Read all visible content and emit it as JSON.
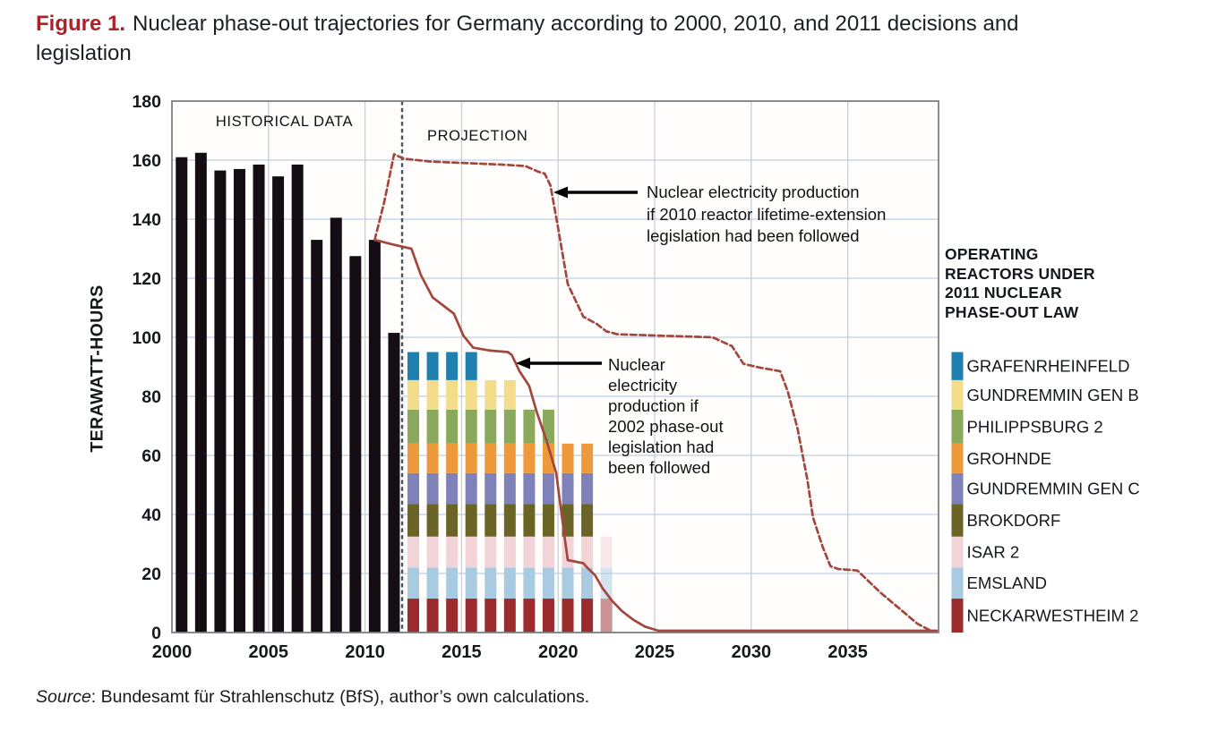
{
  "figure": {
    "label": "Figure 1.",
    "title": "Nuclear phase-out trajectories for Germany according to 2000, 2010, and 2011 decisions and legislation",
    "source_prefix": "Source",
    "source_text": ":  Bundesamt für Strahlenschutz (BfS), author’s own calculations."
  },
  "chart_data": {
    "type": "bar",
    "title": "Nuclear phase-out trajectories for Germany",
    "ylabel": "TERAWATT-HOURS",
    "xlabel": "",
    "ylim": [
      0,
      180
    ],
    "xlim": [
      2000,
      2039.7
    ],
    "yticks": [
      0,
      20,
      40,
      60,
      80,
      100,
      120,
      140,
      160,
      180
    ],
    "xticks": [
      2000,
      2005,
      2010,
      2015,
      2020,
      2025,
      2030,
      2035
    ],
    "grid": true,
    "separator_year": 2011.92,
    "region_labels": {
      "historical": "HISTORICAL DATA",
      "projection": "PROJECTION"
    },
    "historical": {
      "name": "Historical nuclear electricity production",
      "color": "#140e14",
      "years": [
        2000,
        2001,
        2002,
        2003,
        2004,
        2005,
        2006,
        2007,
        2008,
        2009,
        2010,
        2011
      ],
      "values": [
        161,
        162.5,
        156.5,
        157,
        158.5,
        154.5,
        158.5,
        133,
        140.5,
        127.5,
        133,
        101.5
      ]
    },
    "reactors_bottom_to_top": [
      {
        "name": "NECKARWESTHEIM 2",
        "value": 11.5,
        "color": "#9b2b2d"
      },
      {
        "name": "EMSLAND",
        "value": 10.5,
        "color": "#a9cbe2"
      },
      {
        "name": "ISAR 2",
        "value": 10.5,
        "color": "#f2d3d8"
      },
      {
        "name": "BROKDORF",
        "value": 11.0,
        "color": "#6a6426"
      },
      {
        "name": "GUNDREMMIN GEN C",
        "value": 10.5,
        "color": "#7f82b8"
      },
      {
        "name": "GROHNDE",
        "value": 10.0,
        "color": "#ee9a3b"
      },
      {
        "name": "PHILIPPSBURG 2",
        "value": 11.5,
        "color": "#8ba95c"
      },
      {
        "name": "GUNDREMMIN GEN B",
        "value": 10.0,
        "color": "#f4dd8a"
      },
      {
        "name": "GRAFENRHEINFELD",
        "value": 9.5,
        "color": "#1f7fae"
      }
    ],
    "projection_bars": [
      {
        "year": 2012,
        "reactor_count": 9,
        "faded": false
      },
      {
        "year": 2013,
        "reactor_count": 9,
        "faded": false
      },
      {
        "year": 2014,
        "reactor_count": 9,
        "faded": false
      },
      {
        "year": 2015,
        "reactor_count": 9,
        "faded": false
      },
      {
        "year": 2016,
        "reactor_count": 8,
        "faded": false
      },
      {
        "year": 2017,
        "reactor_count": 8,
        "faded": false
      },
      {
        "year": 2018,
        "reactor_count": 7,
        "faded": false
      },
      {
        "year": 2019,
        "reactor_count": 7,
        "faded": false
      },
      {
        "year": 2020,
        "reactor_count": 6,
        "faded": false
      },
      {
        "year": 2021,
        "reactor_count": 6,
        "faded": false
      },
      {
        "year": 2022,
        "reactor_count": 3,
        "faded": true
      }
    ],
    "lines": [
      {
        "id": "lifetime-extension-2010",
        "style": "dashed",
        "color": "#a3463d",
        "label": "Nuclear electricity production if 2010 reactor lifetime-extension legislation had been followed",
        "points": [
          [
            2010.5,
            133
          ],
          [
            2011,
            146
          ],
          [
            2011.5,
            162
          ],
          [
            2012,
            160.5
          ],
          [
            2013.4,
            159.5
          ],
          [
            2017.1,
            158.5
          ],
          [
            2018.3,
            158
          ],
          [
            2019,
            156
          ],
          [
            2019.3,
            155.5
          ],
          [
            2019.6,
            151.5
          ],
          [
            2020,
            137
          ],
          [
            2020.5,
            118
          ],
          [
            2021.3,
            107
          ],
          [
            2022,
            104.5
          ],
          [
            2022.5,
            102
          ],
          [
            2023.1,
            101
          ],
          [
            2028,
            100
          ],
          [
            2029,
            97
          ],
          [
            2029.6,
            91
          ],
          [
            2030.4,
            89.8
          ],
          [
            2031.5,
            88.5
          ],
          [
            2031.9,
            81.5
          ],
          [
            2032.4,
            69
          ],
          [
            2032.9,
            52
          ],
          [
            2033.2,
            39
          ],
          [
            2033.7,
            29
          ],
          [
            2034.1,
            22.5
          ],
          [
            2034.5,
            21.5
          ],
          [
            2035.5,
            21
          ],
          [
            2036.7,
            13.5
          ],
          [
            2037.7,
            8
          ],
          [
            2038.6,
            3
          ],
          [
            2039.3,
            0.6
          ]
        ]
      },
      {
        "id": "phase-out-2002",
        "style": "solid",
        "color": "#a3463d",
        "label": "Nuclear electricity production if 2002 phase-out legislation had been followed",
        "points": [
          [
            2010.5,
            133
          ],
          [
            2011.4,
            131.5
          ],
          [
            2012.4,
            130
          ],
          [
            2012.9,
            121
          ],
          [
            2013.5,
            113.5
          ],
          [
            2014.2,
            110
          ],
          [
            2014.6,
            108
          ],
          [
            2015.1,
            100.5
          ],
          [
            2015.6,
            96.5
          ],
          [
            2016.5,
            95.5
          ],
          [
            2017.4,
            95
          ],
          [
            2017.6,
            94
          ],
          [
            2018,
            88.5
          ],
          [
            2018.5,
            83.5
          ],
          [
            2018.9,
            74.5
          ],
          [
            2019.4,
            65
          ],
          [
            2019.9,
            54
          ],
          [
            2020.3,
            34
          ],
          [
            2020.5,
            24.5
          ],
          [
            2021.3,
            23.5
          ],
          [
            2021.5,
            22
          ],
          [
            2021.9,
            19.5
          ],
          [
            2022.3,
            15
          ],
          [
            2022.8,
            10.7
          ],
          [
            2023.3,
            7.3
          ],
          [
            2023.9,
            4.3
          ],
          [
            2024.5,
            2
          ],
          [
            2025.2,
            0.6
          ],
          [
            2039.6,
            0.6
          ]
        ]
      }
    ],
    "annotations": [
      {
        "id": "annotation-2010",
        "text_lines": [
          "Nuclear electricity production",
          "if 2010 reactor lifetime-extension",
          "legislation had been followed"
        ],
        "arrow": {
          "x_from": 712,
          "y_from": 215,
          "x_to": 618,
          "y_to": 215
        }
      },
      {
        "id": "annotation-2002",
        "text_lines": [
          "Nuclear",
          "electricity",
          "production if",
          "2002 phase-out",
          "legislation had",
          "been followed"
        ],
        "arrow": {
          "x_from": 672,
          "y_from": 406,
          "x_to": 576,
          "y_to": 406
        }
      }
    ],
    "legend": {
      "position": "right",
      "title_lines": [
        "OPERATING",
        "REACTORS UNDER",
        "2011 NUCLEAR",
        "PHASE-OUT LAW"
      ],
      "items_top_to_bottom": [
        "GRAFENRHEINFELD",
        "GUNDREMMIN GEN B",
        "PHILIPPSBURG 2",
        "GROHNDE",
        "GUNDREMMIN GEN C",
        "BROKDORF",
        "ISAR 2",
        "EMSLAND",
        "NECKARWESTHEIM 2"
      ]
    },
    "colors": {
      "grid_horizontal": "#bcd0e4",
      "grid_vertical": "#c6cfda",
      "plot_border": "#7a7f84",
      "separator": "#47545c",
      "arrow": "#000000",
      "tick_text": "#15181d"
    }
  }
}
